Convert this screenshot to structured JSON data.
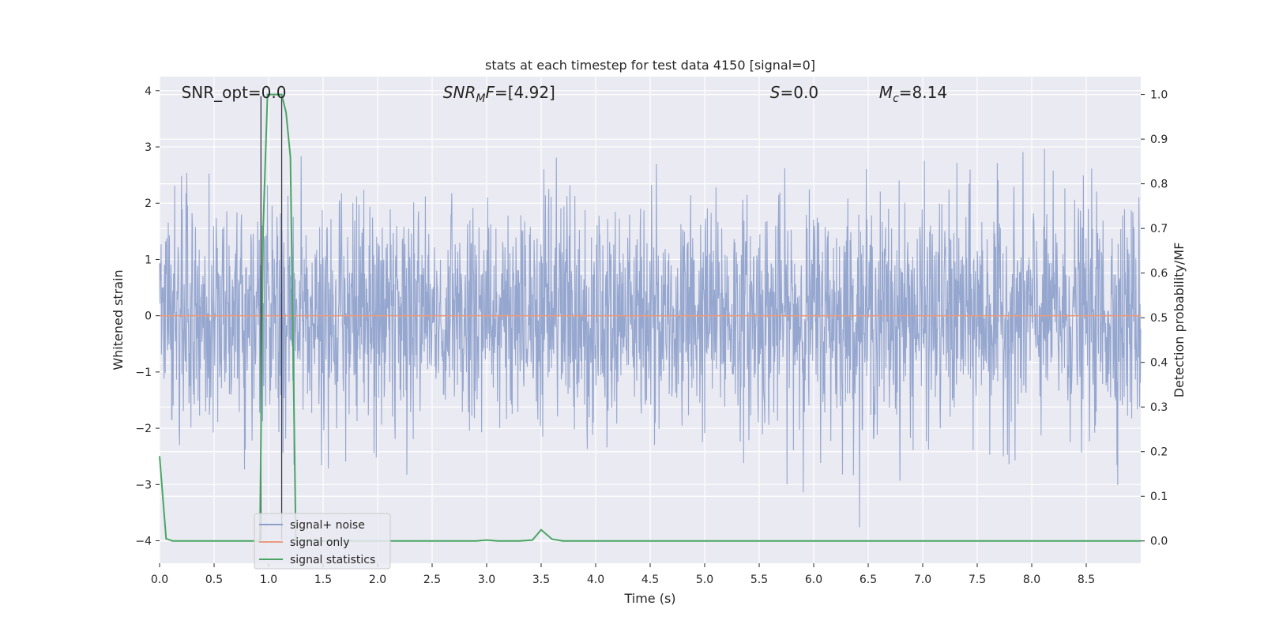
{
  "chart_data": {
    "type": "line",
    "title": "stats at each timestep for test data 4150 [signal=0]",
    "xlabel": "Time (s)",
    "ylabel": "Whitened strain",
    "ylabel_right": "Detection probability/MF",
    "xlim": [
      0,
      9
    ],
    "ylim": [
      -4.4,
      4.25
    ],
    "ylim_right": [
      -0.05,
      1.04
    ],
    "xticks": [
      "0.0",
      "0.5",
      "1.0",
      "1.5",
      "2.0",
      "2.5",
      "3.0",
      "3.5",
      "4.0",
      "4.5",
      "5.0",
      "5.5",
      "6.0",
      "6.5",
      "7.0",
      "7.5",
      "8.0",
      "8.5"
    ],
    "yticks": [
      "4",
      "3",
      "2",
      "1",
      "0",
      "−1",
      "−2",
      "−3",
      "−4"
    ],
    "yticks_right": [
      "1.0",
      "0.9",
      "0.8",
      "0.7",
      "0.6",
      "0.5",
      "0.4",
      "0.3",
      "0.2",
      "0.1",
      "0.0"
    ],
    "grid": true,
    "legend_position": "lower-left",
    "annotations": [
      {
        "text": "SNR_opt=0.0",
        "x": 0.2
      },
      {
        "text": "SNR",
        "sub": "M",
        "rest": "F=[4.92]",
        "x": 2.6
      },
      {
        "text": "S",
        "rest": "=0.0",
        "x": 5.6
      },
      {
        "text": "M",
        "sub": "c",
        "rest": "=8.14",
        "x": 6.6
      }
    ],
    "vlines": [
      0.93,
      1.12
    ],
    "series": [
      {
        "name": "signal+ noise",
        "color": "#8c9fcb",
        "axis": "left",
        "kind": "noise",
        "amplitude_std": 1.0
      },
      {
        "name": "signal only",
        "color": "#e89c7f",
        "axis": "left",
        "y_constant": 0.0
      },
      {
        "name": "signal statistics",
        "color": "#4aa564",
        "axis": "right",
        "x": [
          0.0,
          0.06,
          0.12,
          0.18,
          0.5,
          0.8,
          0.88,
          0.92,
          0.95,
          0.99,
          1.03,
          1.08,
          1.12,
          1.16,
          1.2,
          1.25,
          1.32,
          1.5,
          2.0,
          2.5,
          2.9,
          3.0,
          3.1,
          3.3,
          3.42,
          3.5,
          3.6,
          3.7,
          4.0,
          5.0,
          6.0,
          7.0,
          8.0,
          9.0
        ],
        "y": [
          0.19,
          0.005,
          0.0,
          0.0,
          0.0,
          0.0,
          0.0,
          0.0,
          0.7,
          1.0,
          1.0,
          1.0,
          1.0,
          0.96,
          0.86,
          0.0,
          0.0,
          0.0,
          0.0,
          0.0,
          0.0,
          0.002,
          0.0,
          0.0,
          0.002,
          0.025,
          0.004,
          0.0,
          0.0,
          0.0,
          0.0,
          0.0,
          0.0,
          0.0
        ]
      }
    ]
  }
}
